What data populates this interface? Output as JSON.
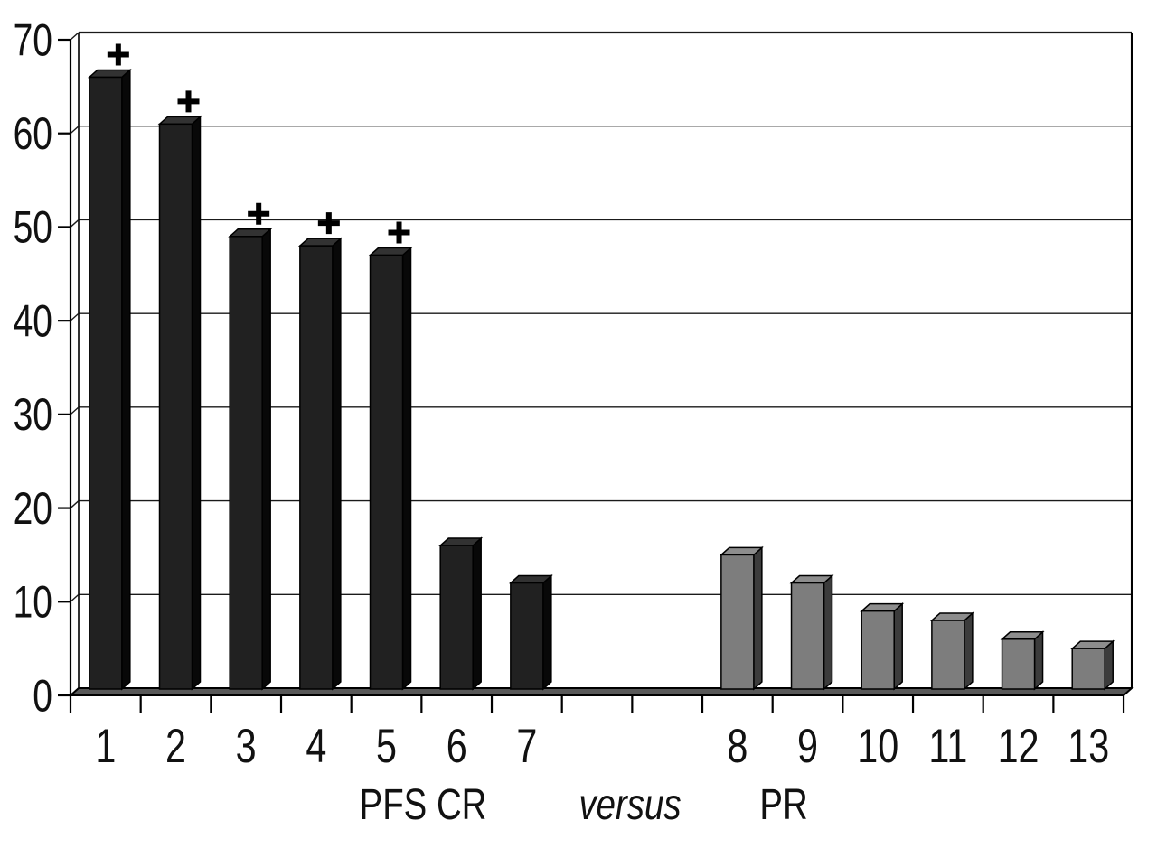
{
  "chart_data": {
    "type": "bar",
    "style": "3d-extruded-columns",
    "title": "",
    "xlabel": "",
    "ylabel": "",
    "ylim": [
      0,
      70
    ],
    "yticks": [
      0,
      10,
      20,
      30,
      40,
      50,
      60,
      70
    ],
    "grid": "horizontal-on",
    "legend": "none",
    "slots_total": 15,
    "empty_slots": [
      7,
      8
    ],
    "categories": [
      "1",
      "2",
      "3",
      "4",
      "5",
      "6",
      "7",
      "8",
      "9",
      "10",
      "11",
      "12",
      "13"
    ],
    "bars": [
      {
        "label": "1",
        "value": 66,
        "slot": 0,
        "group": "CR",
        "censored_plus": true
      },
      {
        "label": "2",
        "value": 61,
        "slot": 1,
        "group": "CR",
        "censored_plus": true
      },
      {
        "label": "3",
        "value": 49,
        "slot": 2,
        "group": "CR",
        "censored_plus": true
      },
      {
        "label": "4",
        "value": 48,
        "slot": 3,
        "group": "CR",
        "censored_plus": true
      },
      {
        "label": "5",
        "value": 47,
        "slot": 4,
        "group": "CR",
        "censored_plus": true
      },
      {
        "label": "6",
        "value": 16,
        "slot": 5,
        "group": "CR",
        "censored_plus": false
      },
      {
        "label": "7",
        "value": 12,
        "slot": 6,
        "group": "CR",
        "censored_plus": false
      },
      {
        "label": "8",
        "value": 15,
        "slot": 9,
        "group": "PR",
        "censored_plus": false
      },
      {
        "label": "9",
        "value": 12,
        "slot": 10,
        "group": "PR",
        "censored_plus": false
      },
      {
        "label": "10",
        "value": 9,
        "slot": 11,
        "group": "PR",
        "censored_plus": false
      },
      {
        "label": "11",
        "value": 8,
        "slot": 12,
        "group": "PR",
        "censored_plus": false
      },
      {
        "label": "12",
        "value": 6,
        "slot": 13,
        "group": "PR",
        "censored_plus": false
      },
      {
        "label": "13",
        "value": 5,
        "slot": 14,
        "group": "PR",
        "censored_plus": false
      }
    ],
    "group_colors": {
      "CR": {
        "front": "#212121",
        "top": "#323232",
        "side": "#080808",
        "outline": "#000000"
      },
      "PR": {
        "front": "#7d7d7d",
        "top": "#8d8d8d",
        "side": "#3c3c3c",
        "outline": "#000000"
      }
    },
    "floor_color": "#585858",
    "axis_color": "#000000",
    "gridline_color": "#1a1a1a",
    "text_color": "#111111",
    "plus_symbol": "+",
    "caption": {
      "left": "PFS CR",
      "middle": "versus",
      "right": "PR"
    }
  }
}
